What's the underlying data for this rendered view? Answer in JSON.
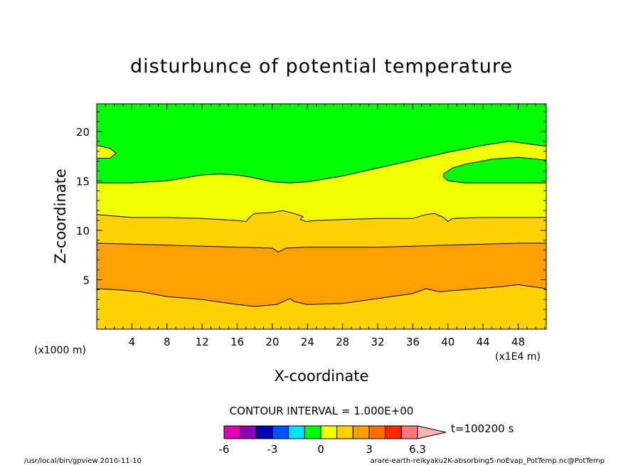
{
  "chart_data": {
    "type": "contour",
    "title": "disturbunce of potential temperature",
    "xlabel": "X-coordinate",
    "ylabel": "Z-coordinate",
    "x_unit": "(x1E4 m)",
    "y_unit": "(x1000 m)",
    "xlim": [
      0,
      51.2
    ],
    "ylim": [
      0,
      22.8
    ],
    "x_ticks": [
      "4",
      "8",
      "12",
      "16",
      "20",
      "24",
      "28",
      "32",
      "36",
      "40",
      "44",
      "48"
    ],
    "y_ticks": [
      "5",
      "10",
      "15",
      "20"
    ],
    "contour_interval_text": "CONTOUR INTERVAL = 1.000E+00",
    "time_text": "t=100200 s",
    "colorbar": {
      "colors": [
        "#e100b4",
        "#8c00b4",
        "#0000b4",
        "#0050ff",
        "#00e1ff",
        "#00ff00",
        "#f0ff00",
        "#ffd200",
        "#ffa000",
        "#ff6e00",
        "#ff2800",
        "#ff7878",
        "#ffb4b4"
      ],
      "tick_labels": [
        "-6",
        "-3",
        "0",
        "3",
        "6.3"
      ]
    },
    "levels": [
      {
        "name": "band-2-to-3",
        "color": "#ffd200",
        "value_range": [
          2,
          3
        ]
      },
      {
        "name": "band-3-to-4",
        "color": "#ffa000",
        "value_range": [
          3,
          4
        ]
      },
      {
        "name": "band-1-to-2",
        "color": "#f0ff00",
        "value_range": [
          1,
          2
        ]
      },
      {
        "name": "band-0-to-1",
        "color": "#00ff00",
        "value_range": [
          0,
          1
        ]
      }
    ],
    "contours": {
      "c3_lower": [
        [
          0,
          4.1
        ],
        [
          2,
          4.0
        ],
        [
          5,
          3.8
        ],
        [
          8,
          3.3
        ],
        [
          12,
          3.0
        ],
        [
          16,
          2.5
        ],
        [
          18,
          2.3
        ],
        [
          20.5,
          2.5
        ],
        [
          21.5,
          2.9
        ],
        [
          22,
          3.1
        ],
        [
          22.5,
          2.8
        ],
        [
          24,
          2.5
        ],
        [
          28,
          2.6
        ],
        [
          32,
          3.1
        ],
        [
          36,
          3.6
        ],
        [
          37.5,
          4.1
        ],
        [
          39,
          3.8
        ],
        [
          42,
          4.0
        ],
        [
          46,
          4.3
        ],
        [
          48,
          4.5
        ],
        [
          51.2,
          4.1
        ]
      ],
      "c3_upper": [
        [
          0,
          8.7
        ],
        [
          4,
          8.6
        ],
        [
          8,
          8.5
        ],
        [
          12,
          8.4
        ],
        [
          16,
          8.3
        ],
        [
          20,
          8.2
        ],
        [
          20.7,
          7.8
        ],
        [
          21.5,
          8.2
        ],
        [
          24,
          8.3
        ],
        [
          28,
          8.3
        ],
        [
          32,
          8.3
        ],
        [
          36,
          8.4
        ],
        [
          40,
          8.5
        ],
        [
          44,
          8.6
        ],
        [
          48,
          8.7
        ],
        [
          51.2,
          8.7
        ]
      ],
      "c2_upper": [
        [
          0,
          11.6
        ],
        [
          4,
          11.3
        ],
        [
          8,
          11.3
        ],
        [
          12,
          11.2
        ],
        [
          16,
          11.0
        ],
        [
          17,
          10.9
        ],
        [
          17.5,
          11.4
        ],
        [
          18,
          11.7
        ],
        [
          20,
          11.8
        ],
        [
          21.2,
          12.0
        ],
        [
          22.5,
          11.7
        ],
        [
          23.5,
          11.4
        ],
        [
          23.2,
          11.1
        ],
        [
          23.8,
          10.9
        ],
        [
          25,
          11.0
        ],
        [
          28,
          11.1
        ],
        [
          32,
          11.2
        ],
        [
          36,
          11.2
        ],
        [
          37.5,
          11.6
        ],
        [
          38.5,
          11.7
        ],
        [
          39.5,
          11.3
        ],
        [
          40,
          10.9
        ],
        [
          40.5,
          11.2
        ],
        [
          44,
          11.3
        ],
        [
          48,
          11.3
        ],
        [
          51.2,
          11.3
        ]
      ],
      "c1_upper": [
        [
          0,
          14.8
        ],
        [
          4,
          14.8
        ],
        [
          8,
          15.0
        ],
        [
          10,
          15.3
        ],
        [
          12,
          15.6
        ],
        [
          14,
          15.7
        ],
        [
          16,
          15.6
        ],
        [
          18,
          15.3
        ],
        [
          20,
          14.9
        ],
        [
          22,
          14.8
        ],
        [
          24,
          14.9
        ],
        [
          28,
          15.5
        ],
        [
          32,
          16.3
        ],
        [
          36,
          17.1
        ],
        [
          40,
          17.9
        ],
        [
          44,
          18.6
        ],
        [
          47,
          19.0
        ],
        [
          51.2,
          18.5
        ]
      ],
      "c1_island_right": [
        [
          39.5,
          15.4
        ],
        [
          40,
          15.0
        ],
        [
          42,
          14.8
        ],
        [
          46,
          14.8
        ],
        [
          51.2,
          14.8
        ],
        [
          51.2,
          17.1
        ],
        [
          48,
          17.4
        ],
        [
          45,
          17.2
        ],
        [
          42,
          16.7
        ],
        [
          40.5,
          16.3
        ],
        [
          39.5,
          15.7
        ]
      ],
      "c1_island_left": [
        [
          0,
          18.6
        ],
        [
          1.5,
          18.3
        ],
        [
          2.2,
          17.8
        ],
        [
          1.5,
          17.3
        ],
        [
          0,
          17.3
        ]
      ]
    }
  }
}
